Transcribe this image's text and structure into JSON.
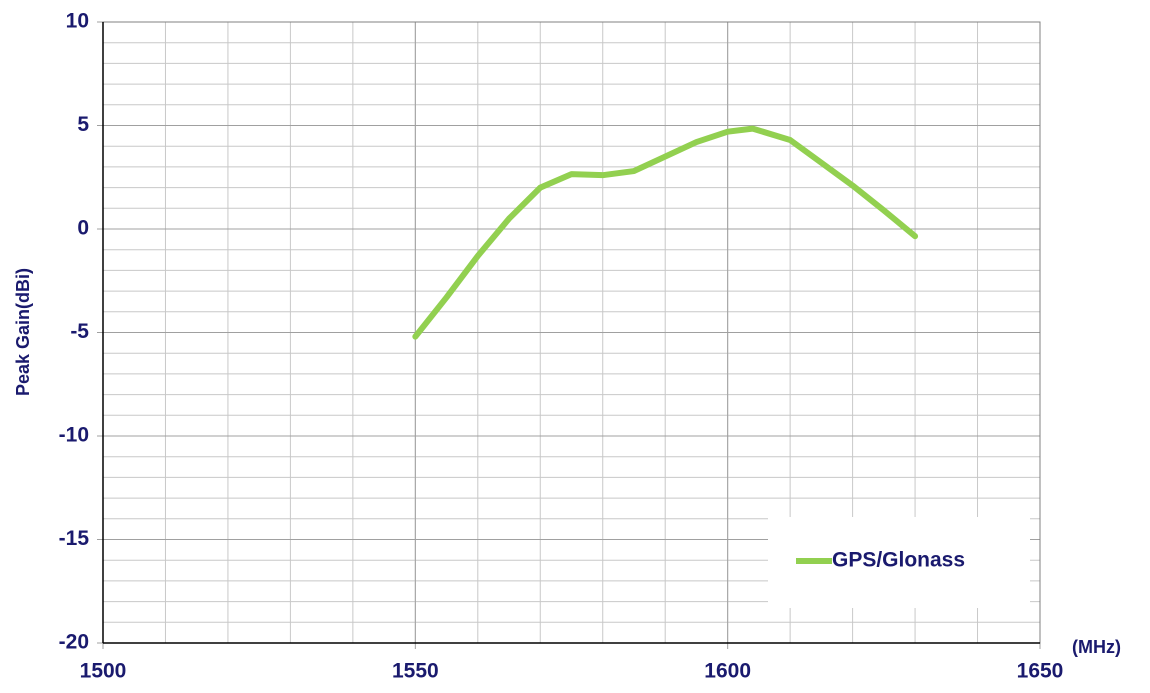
{
  "chart_data": {
    "type": "line",
    "x": [
      1550,
      1555,
      1560,
      1565,
      1570,
      1575,
      1580,
      1585,
      1590,
      1595,
      1600,
      1604,
      1610,
      1615,
      1620,
      1625,
      1630
    ],
    "series": [
      {
        "name": "GPS/Glonass",
        "color": "#92d050",
        "values": [
          -5.2,
          -3.3,
          -1.3,
          0.5,
          2.0,
          2.65,
          2.6,
          2.8,
          3.5,
          4.2,
          4.7,
          4.85,
          4.3,
          3.2,
          2.1,
          0.9,
          -0.35
        ]
      }
    ],
    "xlim": [
      1500,
      1650
    ],
    "xticks": [
      1500,
      1550,
      1600,
      1650
    ],
    "ylim": [
      -20,
      10
    ],
    "yticks": [
      -20,
      -15,
      -10,
      -5,
      0,
      5,
      10
    ],
    "minor_grid": {
      "x": 10,
      "y": 1
    },
    "y_label": "Peak Gain(dBi)",
    "x_unit": "(MHz)",
    "grid": true,
    "legend": "lower right"
  }
}
